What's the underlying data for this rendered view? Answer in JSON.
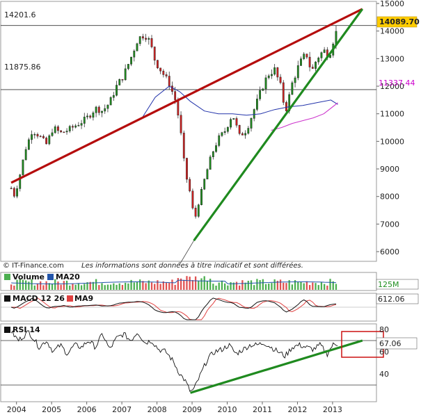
{
  "colors": {
    "up": "#1f8f1f",
    "down": "#d42020",
    "ma_blue": "#2233aa",
    "ma_magenta": "#cc33cc",
    "resistance": "#b50d0d",
    "support": "#1f8a1f",
    "price_label_bg": "#ffcc00",
    "ma_label": "#cc00cc",
    "vol_up": "#4caf50",
    "vol_down": "#e05252",
    "macd_red": "#e04040",
    "rsi_box": "#cc1111"
  },
  "chart_data": [
    {
      "type": "candlestick",
      "x_labels": [
        "2004",
        "2005",
        "2006",
        "2007",
        "2008",
        "2009",
        "2010",
        "2011",
        "2012",
        "2013"
      ],
      "y_ticks": [
        6000,
        7000,
        8000,
        9000,
        10000,
        11000,
        12000,
        13000,
        14000,
        15000
      ],
      "ylim": [
        5800,
        15000
      ],
      "horizontal_lines": [
        {
          "label": "14201.6",
          "value": 14201.6
        },
        {
          "label": "11875.86",
          "value": 11875.86
        }
      ],
      "last_price_label": "14089.70",
      "ma_label": "11337.44",
      "ohlc_anchors": [
        [
          2003.9,
          8300
        ],
        [
          2004.0,
          8000
        ],
        [
          2004.15,
          8800
        ],
        [
          2004.3,
          9700
        ],
        [
          2004.5,
          10400
        ],
        [
          2004.7,
          10200
        ],
        [
          2004.9,
          9900
        ],
        [
          2005.1,
          10500
        ],
        [
          2005.3,
          10300
        ],
        [
          2005.5,
          10400
        ],
        [
          2005.7,
          10550
        ],
        [
          2005.9,
          10700
        ],
        [
          2006.1,
          10900
        ],
        [
          2006.3,
          11200
        ],
        [
          2006.5,
          11100
        ],
        [
          2006.7,
          11400
        ],
        [
          2006.9,
          12000
        ],
        [
          2007.1,
          12400
        ],
        [
          2007.3,
          13000
        ],
        [
          2007.5,
          13700
        ],
        [
          2007.7,
          13900
        ],
        [
          2007.85,
          13600
        ],
        [
          2008.0,
          12900
        ],
        [
          2008.2,
          12500
        ],
        [
          2008.4,
          12100
        ],
        [
          2008.6,
          11400
        ],
        [
          2008.75,
          10100
        ],
        [
          2008.85,
          8900
        ],
        [
          2009.0,
          8100
        ],
        [
          2009.12,
          7100
        ],
        [
          2009.2,
          7600
        ],
        [
          2009.4,
          8600
        ],
        [
          2009.6,
          9500
        ],
        [
          2009.8,
          10100
        ],
        [
          2010.0,
          10400
        ],
        [
          2010.2,
          11000
        ],
        [
          2010.4,
          10200
        ],
        [
          2010.6,
          10400
        ],
        [
          2010.8,
          11100
        ],
        [
          2011.0,
          11800
        ],
        [
          2011.2,
          12400
        ],
        [
          2011.4,
          12600
        ],
        [
          2011.6,
          11900
        ],
        [
          2011.7,
          11000
        ],
        [
          2011.9,
          12100
        ],
        [
          2012.1,
          12800
        ],
        [
          2012.3,
          13200
        ],
        [
          2012.45,
          12500
        ],
        [
          2012.6,
          13000
        ],
        [
          2012.8,
          13300
        ],
        [
          2012.95,
          13100
        ],
        [
          2013.1,
          13800
        ],
        [
          2013.2,
          14089.7
        ]
      ],
      "ma_blue": [
        [
          2007.6,
          10800
        ],
        [
          2008.0,
          11600
        ],
        [
          2008.4,
          12000
        ],
        [
          2008.7,
          11800
        ],
        [
          2009.0,
          11450
        ],
        [
          2009.4,
          11100
        ],
        [
          2009.8,
          11000
        ],
        [
          2010.2,
          11000
        ],
        [
          2010.6,
          10950
        ],
        [
          2011.0,
          11000
        ],
        [
          2011.4,
          11150
        ],
        [
          2011.8,
          11250
        ],
        [
          2012.2,
          11300
        ],
        [
          2012.6,
          11400
        ],
        [
          2013.0,
          11500
        ],
        [
          2013.2,
          11337.44
        ]
      ],
      "ma_magenta": [
        [
          2011.3,
          10400
        ],
        [
          2011.6,
          10500
        ],
        [
          2011.9,
          10650
        ],
        [
          2012.2,
          10750
        ],
        [
          2012.5,
          10850
        ],
        [
          2012.8,
          11000
        ],
        [
          2013.0,
          11200
        ],
        [
          2013.2,
          11400
        ]
      ],
      "resistance_line": [
        [
          2003.9,
          8500
        ],
        [
          2013.9,
          14800
        ]
      ],
      "support_line": [
        [
          2009.1,
          6400
        ],
        [
          2013.9,
          14800
        ]
      ]
    },
    {
      "type": "bar",
      "legend": [
        "Volume",
        "MA20"
      ],
      "value_label": "125M"
    },
    {
      "type": "line",
      "legend": [
        "MACD 12 26",
        "MA9"
      ],
      "value_label": "612.06"
    },
    {
      "type": "line",
      "legend": [
        "RSI 14"
      ],
      "y_ticks": [
        40,
        60,
        80
      ],
      "value_label": "67.06",
      "rsi_anchors": [
        [
          2003.9,
          78
        ],
        [
          2004.1,
          70
        ],
        [
          2004.4,
          78
        ],
        [
          2004.7,
          64
        ],
        [
          2004.9,
          70
        ],
        [
          2005.1,
          60
        ],
        [
          2005.3,
          66
        ],
        [
          2005.5,
          58
        ],
        [
          2005.7,
          66
        ],
        [
          2005.9,
          64
        ],
        [
          2006.1,
          70
        ],
        [
          2006.3,
          64
        ],
        [
          2006.5,
          76
        ],
        [
          2006.7,
          62
        ],
        [
          2006.9,
          72
        ],
        [
          2007.1,
          76
        ],
        [
          2007.3,
          70
        ],
        [
          2007.5,
          78
        ],
        [
          2007.7,
          68
        ],
        [
          2007.9,
          70
        ],
        [
          2008.1,
          62
        ],
        [
          2008.3,
          60
        ],
        [
          2008.5,
          52
        ],
        [
          2008.7,
          40
        ],
        [
          2008.85,
          34
        ],
        [
          2009.0,
          24
        ],
        [
          2009.1,
          26
        ],
        [
          2009.3,
          40
        ],
        [
          2009.5,
          54
        ],
        [
          2009.7,
          60
        ],
        [
          2009.9,
          62
        ],
        [
          2010.1,
          66
        ],
        [
          2010.3,
          58
        ],
        [
          2010.5,
          62
        ],
        [
          2010.7,
          66
        ],
        [
          2010.9,
          66
        ],
        [
          2011.1,
          68
        ],
        [
          2011.3,
          64
        ],
        [
          2011.5,
          60
        ],
        [
          2011.7,
          56
        ],
        [
          2011.9,
          64
        ],
        [
          2012.1,
          66
        ],
        [
          2012.3,
          64
        ],
        [
          2012.5,
          62
        ],
        [
          2012.7,
          66
        ],
        [
          2012.9,
          58
        ],
        [
          2013.05,
          66
        ],
        [
          2013.2,
          67.06
        ]
      ],
      "support_line": [
        [
          2009.0,
          23
        ],
        [
          2013.9,
          70
        ]
      ]
    }
  ],
  "footer": {
    "source": "© IT-Finance.com",
    "disclaimer": "Les informations sont données à titre indicatif et sont différées."
  }
}
